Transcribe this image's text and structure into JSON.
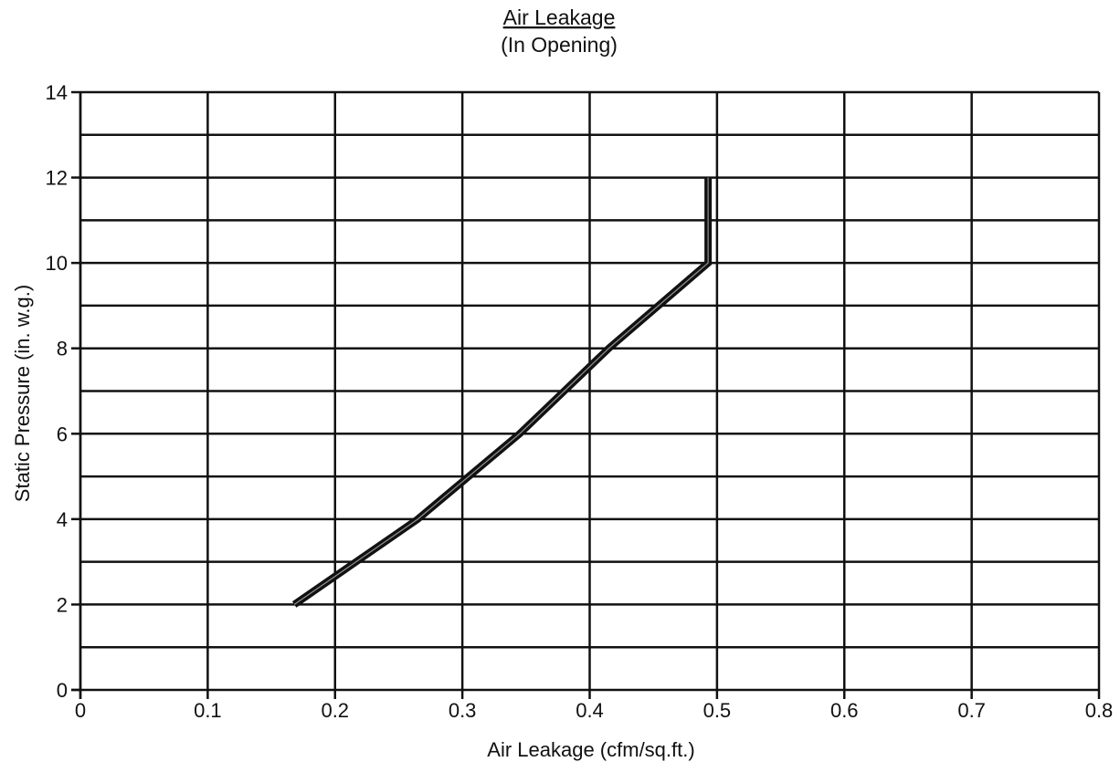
{
  "chart_data": {
    "type": "line",
    "title": "Air Leakage",
    "subtitle": "(In Opening)",
    "xlabel": "Air Leakage (cfm/sq.ft.)",
    "ylabel": "Static Pressure (in. w.g.)",
    "xlim": [
      0,
      0.8
    ],
    "ylim": [
      0,
      14
    ],
    "x_ticks": [
      0,
      0.1,
      0.2,
      0.3,
      0.4,
      0.5,
      0.6,
      0.7,
      0.8
    ],
    "x_tick_labels": [
      "0",
      "0.1",
      "0.2",
      "0.3",
      "0.4",
      "0.5",
      "0.6",
      "0.7",
      "0.8"
    ],
    "y_ticks": [
      0,
      2,
      4,
      6,
      8,
      10,
      12,
      14
    ],
    "y_tick_labels": [
      "0",
      "2",
      "4",
      "6",
      "8",
      "10",
      "12",
      "14"
    ],
    "y_gridlines": [
      1,
      2,
      3,
      4,
      5,
      6,
      7,
      8,
      9,
      10,
      11,
      12,
      13,
      14
    ],
    "grid": true,
    "legend": "none",
    "series": [
      {
        "x": [
          0.168,
          0.265,
          0.345,
          0.415,
          0.493,
          0.493
        ],
        "y": [
          2,
          4,
          6,
          8,
          10,
          12
        ]
      }
    ],
    "colors": {
      "line": "#111111",
      "grid": "#111111",
      "text": "#111111"
    }
  }
}
